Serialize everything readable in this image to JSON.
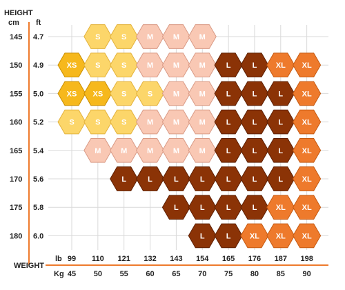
{
  "chart_data": {
    "type": "table",
    "title": "",
    "height_label": "HEIGHT",
    "height_units": [
      "cm",
      "ft"
    ],
    "weight_label": "WEIGHT",
    "weight_units": [
      "lb",
      "Kg"
    ],
    "heights_cm": [
      "145",
      "150",
      "155",
      "160",
      "165",
      "170",
      "175",
      "180"
    ],
    "heights_ft": [
      "4.7",
      "4.9",
      "5.0",
      "5.2",
      "5.4",
      "5.6",
      "5.8",
      "6.0"
    ],
    "weights_lb": [
      "99",
      "110",
      "121",
      "132",
      "143",
      "154",
      "165",
      "176",
      "187",
      "198"
    ],
    "weights_kg": [
      "45",
      "50",
      "55",
      "60",
      "65",
      "70",
      "75",
      "80",
      "85",
      "90"
    ],
    "sizes": [
      [
        "",
        "S",
        "S",
        "M",
        "M",
        "M",
        "",
        "",
        "",
        ""
      ],
      [
        "XS",
        "S",
        "S",
        "M",
        "M",
        "M",
        "L",
        "L",
        "XL",
        "XL"
      ],
      [
        "XS",
        "XS",
        "S",
        "S",
        "M",
        "M",
        "L",
        "L",
        "L",
        "XL"
      ],
      [
        "S",
        "S",
        "S",
        "M",
        "M",
        "M",
        "L",
        "L",
        "L",
        "XL"
      ],
      [
        "",
        "M",
        "M",
        "M",
        "M",
        "M",
        "L",
        "L",
        "L",
        "XL"
      ],
      [
        "",
        "",
        "L",
        "L",
        "L",
        "L",
        "L",
        "L",
        "L",
        "XL"
      ],
      [
        "",
        "",
        "",
        "",
        "L",
        "L",
        "L",
        "L",
        "XL",
        "XL"
      ],
      [
        "",
        "",
        "",
        "",
        "",
        "L",
        "L",
        "XL",
        "XL",
        "XL"
      ]
    ],
    "size_colors": {
      "XS": {
        "fill": "#f6b81c",
        "stroke": "#c98e00"
      },
      "S": {
        "fill": "#fcd66a",
        "stroke": "#e3b23c"
      },
      "M": {
        "fill": "#f9c8b4",
        "stroke": "#d99a85"
      },
      "L": {
        "fill": "#8b3306",
        "stroke": "#5e2003"
      },
      "XL": {
        "fill": "#ee7a2c",
        "stroke": "#c55a12"
      }
    },
    "axis_color": "#ee7a2c"
  }
}
